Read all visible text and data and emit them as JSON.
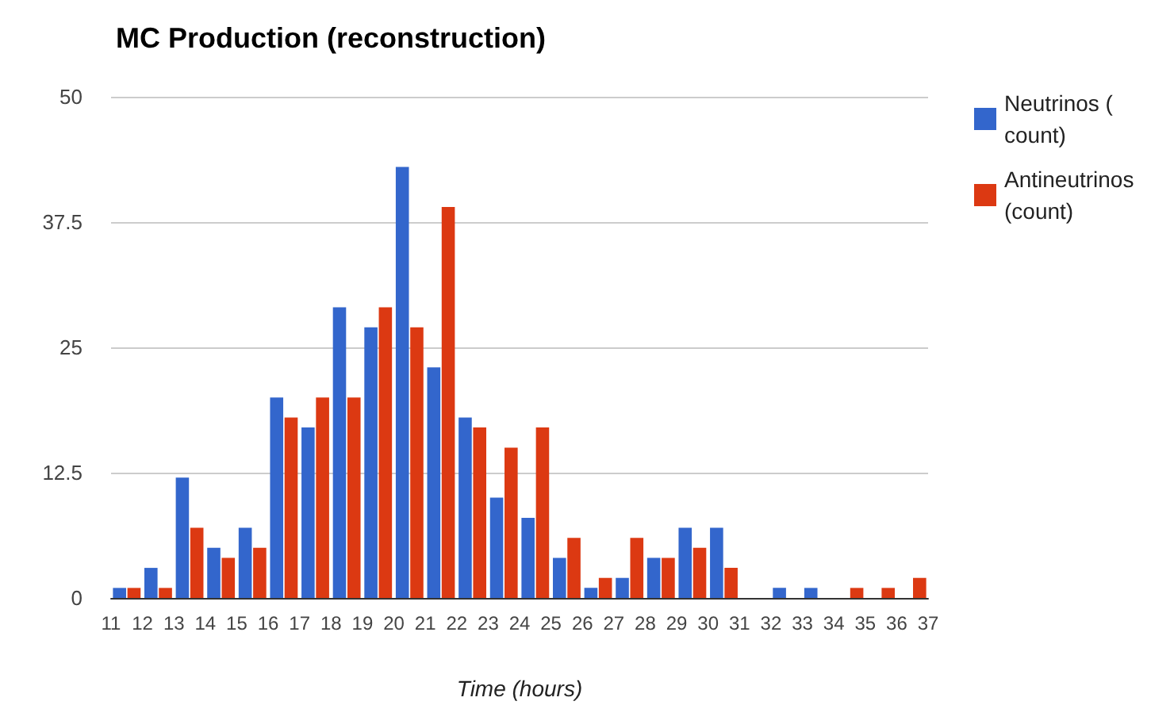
{
  "chart_data": {
    "type": "bar",
    "title": "MC Production (reconstruction)",
    "xlabel": "Time (hours)",
    "x": [
      11.5,
      12.5,
      13.5,
      14.5,
      15.5,
      16.5,
      17.5,
      18.5,
      19.5,
      20.5,
      21.5,
      22.5,
      23.5,
      24.5,
      25.5,
      26.5,
      27.5,
      28.5,
      29.5,
      30.5,
      31.5,
      32.5,
      33.5,
      34.5,
      35.5,
      36.5
    ],
    "series": [
      {
        "name": "Neutrinos ( count)",
        "color": "#3366cc",
        "values": [
          1,
          3,
          12,
          5,
          7,
          20,
          17,
          29,
          27,
          43,
          23,
          18,
          10,
          8,
          4,
          1,
          2,
          4,
          7,
          7,
          0,
          1,
          1,
          0,
          0,
          0
        ]
      },
      {
        "name": "Antineutrinos (count)",
        "color": "#dc3912",
        "values": [
          1,
          1,
          7,
          4,
          5,
          18,
          20,
          20,
          29,
          27,
          39,
          17,
          15,
          17,
          6,
          2,
          6,
          4,
          5,
          3,
          0,
          0,
          0,
          1,
          1,
          2
        ]
      }
    ],
    "xlim": [
      11,
      37
    ],
    "xticks": [
      11,
      12,
      13,
      14,
      15,
      16,
      17,
      18,
      19,
      20,
      21,
      22,
      23,
      24,
      25,
      26,
      27,
      28,
      29,
      30,
      31,
      32,
      33,
      34,
      35,
      36,
      37
    ],
    "ylim": [
      0,
      50
    ],
    "yticks": [
      0,
      12.5,
      25,
      37.5,
      50
    ],
    "grid": "y",
    "legend": "right"
  }
}
